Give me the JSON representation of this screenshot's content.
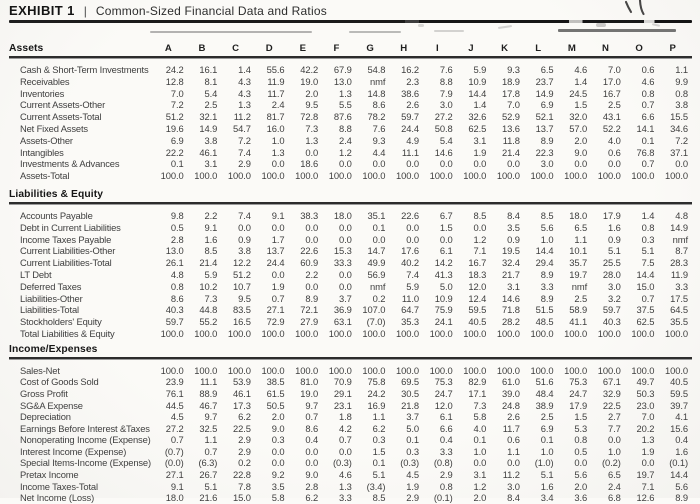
{
  "document": {
    "exhibit_label": "EXHIBIT 1",
    "divider": "|",
    "title": "Common-Sized Financial Data and Ratios"
  },
  "annotations": {
    "pen_marks_top_right": "two handwritten pen strokes",
    "scan_smudges": "faint scanner streak lines above the column header row"
  },
  "table": {
    "columns": [
      "A",
      "B",
      "C",
      "D",
      "E",
      "F",
      "G",
      "H",
      "I",
      "J",
      "K",
      "L",
      "M",
      "N",
      "O",
      "P"
    ],
    "sections": [
      {
        "name": "Assets",
        "rows": [
          {
            "label": "Cash & Short-Term Investments",
            "values": [
              "24.2",
              "16.1",
              "1.4",
              "55.6",
              "42.2",
              "67.9",
              "54.8",
              "16.2",
              "7.6",
              "5.9",
              "9.3",
              "6.5",
              "4.6",
              "7.0",
              "0.6",
              "1.1"
            ]
          },
          {
            "label": "Receivables",
            "values": [
              "12.8",
              "8.1",
              "4.3",
              "11.9",
              "19.0",
              "13.0",
              "nmf",
              "2.3",
              "8.8",
              "10.9",
              "18.9",
              "23.7",
              "1.4",
              "17.0",
              "4.6",
              "9.9"
            ]
          },
          {
            "label": "Inventories",
            "values": [
              "7.0",
              "5.4",
              "4.3",
              "11.7",
              "2.0",
              "1.3",
              "14.8",
              "38.6",
              "7.9",
              "14.4",
              "17.8",
              "14.9",
              "24.5",
              "16.7",
              "0.8",
              "0.8"
            ]
          },
          {
            "label": "Current Assets-Other",
            "values": [
              "7.2",
              "2.5",
              "1.3",
              "2.4",
              "9.5",
              "5.5",
              "8.6",
              "2.6",
              "3.0",
              "1.4",
              "7.0",
              "6.9",
              "1.5",
              "2.5",
              "0.7",
              "3.8"
            ]
          },
          {
            "label": "Current Assets-Total",
            "values": [
              "51.2",
              "32.1",
              "11.2",
              "81.7",
              "72.8",
              "87.6",
              "78.2",
              "59.7",
              "27.2",
              "32.6",
              "52.9",
              "52.1",
              "32.0",
              "43.1",
              "6.6",
              "15.5"
            ]
          },
          {
            "label": "Net Fixed Assets",
            "values": [
              "19.6",
              "14.9",
              "54.7",
              "16.0",
              "7.3",
              "8.8",
              "7.6",
              "24.4",
              "50.8",
              "62.5",
              "13.6",
              "13.7",
              "57.0",
              "52.2",
              "14.1",
              "34.6"
            ]
          },
          {
            "label": "Assets-Other",
            "values": [
              "6.9",
              "3.8",
              "7.2",
              "1.0",
              "1.3",
              "2.4",
              "9.3",
              "4.9",
              "5.4",
              "3.1",
              "11.8",
              "8.9",
              "2.0",
              "4.0",
              "0.1",
              "7.2"
            ]
          },
          {
            "label": "Intangibles",
            "values": [
              "22.2",
              "46.1",
              "7.4",
              "1.3",
              "0.0",
              "1.2",
              "4.4",
              "11.1",
              "14.6",
              "1.9",
              "21.4",
              "22.3",
              "9.0",
              "0.6",
              "76.8",
              "37.1"
            ]
          },
          {
            "label": "Investments & Advances",
            "values": [
              "0.1",
              "3.1",
              "2.9",
              "0.0",
              "18.6",
              "0.0",
              "0.0",
              "0.0",
              "0.0",
              "0.0",
              "0.0",
              "3.0",
              "0.0",
              "0.0",
              "0.7",
              "0.0"
            ]
          },
          {
            "label": "Assets-Total",
            "values": [
              "100.0",
              "100.0",
              "100.0",
              "100.0",
              "100.0",
              "100.0",
              "100.0",
              "100.0",
              "100.0",
              "100.0",
              "100.0",
              "100.0",
              "100.0",
              "100.0",
              "100.0",
              "100.0"
            ]
          }
        ]
      },
      {
        "name": "Liabilities & Equity",
        "rows": [
          {
            "label": "Accounts Payable",
            "values": [
              "9.8",
              "2.2",
              "7.4",
              "9.1",
              "38.3",
              "18.0",
              "35.1",
              "22.6",
              "6.7",
              "8.5",
              "8.4",
              "8.5",
              "18.0",
              "17.9",
              "1.4",
              "4.8"
            ]
          },
          {
            "label": "Debt in Current Liabilities",
            "values": [
              "0.5",
              "9.1",
              "0.0",
              "0.0",
              "0.0",
              "0.0",
              "0.1",
              "0.0",
              "1.5",
              "0.0",
              "3.5",
              "5.6",
              "6.5",
              "1.6",
              "0.8",
              "14.9"
            ]
          },
          {
            "label": "Income Taxes Payable",
            "values": [
              "2.8",
              "1.6",
              "0.9",
              "1.7",
              "0.0",
              "0.0",
              "0.0",
              "0.0",
              "0.0",
              "1.2",
              "0.9",
              "1.0",
              "1.1",
              "0.9",
              "0.3",
              "nmf"
            ]
          },
          {
            "label": "Current Liabilities-Other",
            "values": [
              "13.0",
              "8.5",
              "3.8",
              "13.7",
              "22.6",
              "15.3",
              "14.7",
              "17.6",
              "6.1",
              "7.1",
              "19.5",
              "14.4",
              "10.1",
              "5.1",
              "5.1",
              "8.7"
            ]
          },
          {
            "label": "Current Liabilities-Total",
            "values": [
              "26.1",
              "21.4",
              "12.2",
              "24.4",
              "60.9",
              "33.3",
              "49.9",
              "40.2",
              "14.2",
              "16.7",
              "32.4",
              "29.4",
              "35.7",
              "25.5",
              "7.5",
              "28.3"
            ]
          },
          {
            "label": "LT Debt",
            "values": [
              "4.8",
              "5.9",
              "51.2",
              "0.0",
              "2.2",
              "0.0",
              "56.9",
              "7.4",
              "41.3",
              "18.3",
              "21.7",
              "8.9",
              "19.7",
              "28.0",
              "14.4",
              "11.9"
            ]
          },
          {
            "label": "Deferred Taxes",
            "values": [
              "0.8",
              "10.2",
              "10.7",
              "1.9",
              "0.0",
              "0.0",
              "nmf",
              "5.9",
              "5.0",
              "12.0",
              "3.1",
              "3.3",
              "nmf",
              "3.0",
              "15.0",
              "3.3"
            ]
          },
          {
            "label": "Liabilities-Other",
            "values": [
              "8.6",
              "7.3",
              "9.5",
              "0.7",
              "8.9",
              "3.7",
              "0.2",
              "11.0",
              "10.9",
              "12.4",
              "14.6",
              "8.9",
              "2.5",
              "3.2",
              "0.7",
              "17.5"
            ]
          },
          {
            "label": "Liabilities-Total",
            "values": [
              "40.3",
              "44.8",
              "83.5",
              "27.1",
              "72.1",
              "36.9",
              "107.0",
              "64.7",
              "75.9",
              "59.5",
              "71.8",
              "51.5",
              "58.9",
              "59.7",
              "37.5",
              "64.5"
            ]
          },
          {
            "label": "Stockholders' Equity",
            "values": [
              "59.7",
              "55.2",
              "16.5",
              "72.9",
              "27.9",
              "63.1",
              "(7.0)",
              "35.3",
              "24.1",
              "40.5",
              "28.2",
              "48.5",
              "41.1",
              "40.3",
              "62.5",
              "35.5"
            ]
          },
          {
            "label": "Total Liabilities & Equity",
            "values": [
              "100.0",
              "100.0",
              "100.0",
              "100.0",
              "100.0",
              "100.0",
              "100.0",
              "100.0",
              "100.0",
              "100.0",
              "100.0",
              "100.0",
              "100.0",
              "100.0",
              "100.0",
              "100.0"
            ]
          }
        ]
      },
      {
        "name": "Income/Expenses",
        "rows": [
          {
            "label": "Sales-Net",
            "values": [
              "100.0",
              "100.0",
              "100.0",
              "100.0",
              "100.0",
              "100.0",
              "100.0",
              "100.0",
              "100.0",
              "100.0",
              "100.0",
              "100.0",
              "100.0",
              "100.0",
              "100.0",
              "100.0"
            ]
          },
          {
            "label": "Cost of Goods Sold",
            "values": [
              "23.9",
              "11.1",
              "53.9",
              "38.5",
              "81.0",
              "70.9",
              "75.8",
              "69.5",
              "75.3",
              "82.9",
              "61.0",
              "51.6",
              "75.3",
              "67.1",
              "49.7",
              "40.5"
            ]
          },
          {
            "label": "Gross Profit",
            "values": [
              "76.1",
              "88.9",
              "46.1",
              "61.5",
              "19.0",
              "29.1",
              "24.2",
              "30.5",
              "24.7",
              "17.1",
              "39.0",
              "48.4",
              "24.7",
              "32.9",
              "50.3",
              "59.5"
            ]
          },
          {
            "label": "SG&A Expense",
            "values": [
              "44.5",
              "46.7",
              "17.3",
              "50.5",
              "9.7",
              "23.1",
              "16.9",
              "21.8",
              "12.0",
              "7.3",
              "24.8",
              "38.9",
              "17.9",
              "22.5",
              "23.0",
              "39.7"
            ]
          },
          {
            "label": "Depreciation",
            "values": [
              "4.5",
              "9.7",
              "6.2",
              "2.0",
              "0.7",
              "1.8",
              "1.1",
              "3.7",
              "6.1",
              "5.8",
              "2.6",
              "2.5",
              "1.5",
              "2.7",
              "7.0",
              "4.1"
            ]
          },
          {
            "label": "Earnings Before Interest &Taxes",
            "values": [
              "27.2",
              "32.5",
              "22.5",
              "9.0",
              "8.6",
              "4.2",
              "6.2",
              "5.0",
              "6.6",
              "4.0",
              "11.7",
              "6.9",
              "5.3",
              "7.7",
              "20.2",
              "15.6"
            ]
          },
          {
            "label": "Nonoperating Income (Expense)",
            "values": [
              "0.7",
              "1.1",
              "2.9",
              "0.3",
              "0.4",
              "0.7",
              "0.3",
              "0.1",
              "0.4",
              "0.1",
              "0.6",
              "0.1",
              "0.8",
              "0.0",
              "1.3",
              "0.4"
            ]
          },
          {
            "label": "Interest Income (Expense)",
            "values": [
              "(0.7)",
              "0.7",
              "2.9",
              "0.0",
              "0.0",
              "0.0",
              "1.5",
              "0.3",
              "3.3",
              "1.0",
              "1.1",
              "1.0",
              "0.5",
              "1.0",
              "1.9",
              "1.6"
            ]
          },
          {
            "label": "Special Items-Income (Expense)",
            "values": [
              "(0.0)",
              "(6.3)",
              "0.2",
              "0.0",
              "0.0",
              "(0.3)",
              "0.1",
              "(0.3)",
              "(0.8)",
              "0.0",
              "0.0",
              "(1.0)",
              "0.0",
              "(0.2)",
              "0.0",
              "(0.1)"
            ]
          },
          {
            "label": "Pretax Income",
            "values": [
              "27.1",
              "26.7",
              "22.8",
              "9.2",
              "9.0",
              "4.6",
              "5.1",
              "4.5",
              "2.9",
              "3.1",
              "11.2",
              "5.1",
              "5.6",
              "6.5",
              "19.7",
              "14.4"
            ]
          },
          {
            "label": "Income Taxes-Total",
            "values": [
              "9.1",
              "5.1",
              "7.8",
              "3.5",
              "2.8",
              "1.3",
              "(3.4)",
              "1.9",
              "0.8",
              "1.2",
              "3.0",
              "1.6",
              "2.0",
              "2.4",
              "7.1",
              "5.6"
            ]
          },
          {
            "label": "Net Income (Loss)",
            "values": [
              "18.0",
              "21.6",
              "15.0",
              "5.8",
              "6.2",
              "3.3",
              "8.5",
              "2.9",
              "(0.1)",
              "2.0",
              "8.4",
              "3.4",
              "3.6",
              "6.8",
              "12.6",
              "8.9"
            ]
          }
        ]
      }
    ]
  }
}
